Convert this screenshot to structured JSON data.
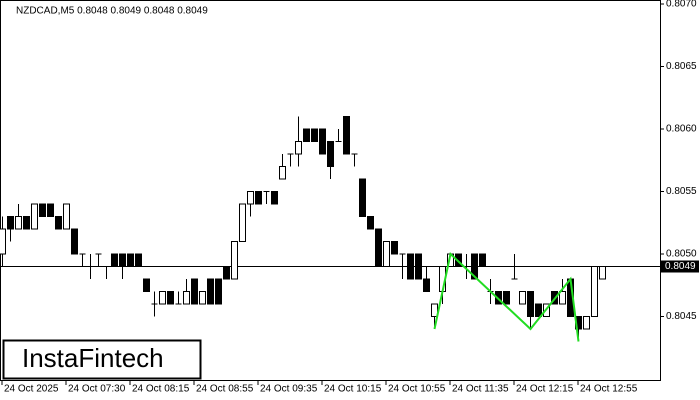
{
  "chart_data": {
    "type": "candlestick",
    "title": "NZDCAD,M5  0.8048 0.8049 0.8048 0.8049",
    "logo": "InstaFintech",
    "categories": [
      "24 Oct 2025",
      null,
      null,
      null,
      null,
      null,
      null,
      null,
      "24 Oct 07:30",
      null,
      null,
      null,
      null,
      null,
      null,
      null,
      "24 Oct 08:15",
      null,
      null,
      null,
      null,
      null,
      null,
      null,
      "24 Oct 08:55",
      null,
      null,
      null,
      null,
      null,
      null,
      null,
      "24 Oct 09:35",
      null,
      null,
      null,
      null,
      null,
      null,
      null,
      "24 Oct 10:15",
      null,
      null,
      null,
      null,
      null,
      null,
      null,
      "24 Oct 10:55",
      null,
      null,
      null,
      null,
      null,
      null,
      null,
      "24 Oct 11:35",
      null,
      null,
      null,
      null,
      null,
      null,
      null,
      "24 Oct 12:15",
      null,
      null,
      null,
      null,
      null,
      null,
      null,
      "24 Oct 12:55",
      null,
      null,
      null
    ],
    "ohlc": [
      [
        0.805,
        0.8053,
        0.8049,
        0.8052
      ],
      [
        0.8053,
        0.8053,
        0.8051,
        0.8052
      ],
      [
        0.8052,
        0.8054,
        0.8052,
        0.8053
      ],
      [
        0.8053,
        0.8053,
        0.8052,
        0.8052
      ],
      [
        0.8052,
        0.8054,
        0.8052,
        0.8054
      ],
      [
        0.8054,
        0.8054,
        0.8053,
        0.8053
      ],
      [
        0.8054,
        0.8054,
        0.8053,
        0.8053
      ],
      [
        0.8053,
        0.8053,
        0.8052,
        0.8052
      ],
      [
        0.8052,
        0.8054,
        0.8052,
        0.8054
      ],
      [
        0.8052,
        0.8052,
        0.805,
        0.805
      ],
      [
        0.805,
        0.805,
        0.8049,
        0.805
      ],
      [
        0.8049,
        0.805,
        0.8048,
        0.8049
      ],
      [
        0.805,
        0.805,
        0.8049,
        0.805
      ],
      [
        0.8049,
        0.8049,
        0.8048,
        0.8049
      ],
      [
        0.805,
        0.805,
        0.8049,
        0.8049
      ],
      [
        0.805,
        0.805,
        0.8048,
        0.8049
      ],
      [
        0.805,
        0.805,
        0.8049,
        0.8049
      ],
      [
        0.805,
        0.805,
        0.8049,
        0.8049
      ],
      [
        0.8048,
        0.8048,
        0.8047,
        0.8047
      ],
      [
        0.8046,
        0.8047,
        0.8045,
        0.8046
      ],
      [
        0.8046,
        0.8047,
        0.8046,
        0.8047
      ],
      [
        0.8047,
        0.8047,
        0.8046,
        0.8046
      ],
      [
        0.8046,
        0.8047,
        0.8046,
        0.8046
      ],
      [
        0.8046,
        0.8048,
        0.8046,
        0.8047
      ],
      [
        0.8048,
        0.8048,
        0.8046,
        0.8046
      ],
      [
        0.8046,
        0.8047,
        0.8046,
        0.8047
      ],
      [
        0.8048,
        0.8048,
        0.8046,
        0.8046
      ],
      [
        0.8048,
        0.8048,
        0.8046,
        0.8046
      ],
      [
        0.8049,
        0.8049,
        0.8048,
        0.8048
      ],
      [
        0.8048,
        0.8051,
        0.8048,
        0.8051
      ],
      [
        0.8051,
        0.8054,
        0.8051,
        0.8054
      ],
      [
        0.8054,
        0.8055,
        0.8053,
        0.8055
      ],
      [
        0.8055,
        0.8055,
        0.8054,
        0.8054
      ],
      [
        0.8055,
        0.8055,
        0.8054,
        0.8055
      ],
      [
        0.8055,
        0.8055,
        0.8054,
        0.8054
      ],
      [
        0.8056,
        0.8058,
        0.8056,
        0.8057
      ],
      [
        0.8058,
        0.8058,
        0.8057,
        0.8058
      ],
      [
        0.8058,
        0.8061,
        0.8057,
        0.8059
      ],
      [
        0.806,
        0.806,
        0.8059,
        0.8059
      ],
      [
        0.806,
        0.806,
        0.8059,
        0.8059
      ],
      [
        0.806,
        0.806,
        0.8058,
        0.8058
      ],
      [
        0.8059,
        0.8059,
        0.8056,
        0.8057
      ],
      [
        0.8059,
        0.806,
        0.8059,
        0.8059
      ],
      [
        0.8061,
        0.8061,
        0.8058,
        0.8058
      ],
      [
        0.8058,
        0.8058,
        0.8057,
        0.8058
      ],
      [
        0.8056,
        0.8056,
        0.8053,
        0.8053
      ],
      [
        0.8053,
        0.8053,
        0.8052,
        0.8052
      ],
      [
        0.8052,
        0.8052,
        0.8049,
        0.8049
      ],
      [
        0.8049,
        0.8051,
        0.8049,
        0.8051
      ],
      [
        0.8051,
        0.8051,
        0.805,
        0.805
      ],
      [
        0.805,
        0.805,
        0.8048,
        0.805
      ],
      [
        0.805,
        0.805,
        0.8048,
        0.8048
      ],
      [
        0.805,
        0.805,
        0.8048,
        0.8048
      ],
      [
        0.8048,
        0.8049,
        0.8047,
        0.8047
      ],
      [
        0.8045,
        0.8046,
        0.8044,
        0.8046
      ],
      [
        0.8047,
        0.8049,
        0.8046,
        0.8049
      ],
      [
        0.8049,
        0.805,
        0.8049,
        0.805
      ],
      [
        0.805,
        0.805,
        0.8049,
        0.8049
      ],
      [
        0.8049,
        0.805,
        0.8048,
        0.8049
      ],
      [
        0.805,
        0.805,
        0.8048,
        0.8048
      ],
      [
        0.805,
        0.805,
        0.8049,
        0.8049
      ],
      [
        0.8047,
        0.8048,
        0.8046,
        0.8047
      ],
      [
        0.8047,
        0.8047,
        0.8046,
        0.8046
      ],
      [
        0.8047,
        0.8047,
        0.8046,
        0.8046
      ],
      [
        0.8048,
        0.805,
        0.8048,
        0.8048
      ],
      [
        0.8046,
        0.8047,
        0.8046,
        0.8047
      ],
      [
        0.8047,
        0.8047,
        0.8044,
        0.8045
      ],
      [
        0.8046,
        0.8046,
        0.8045,
        0.8045
      ],
      [
        0.8045,
        0.8046,
        0.8045,
        0.8046
      ],
      [
        0.8047,
        0.8047,
        0.8046,
        0.8046
      ],
      [
        0.8046,
        0.8048,
        0.8046,
        0.8047
      ],
      [
        0.8048,
        0.8048,
        0.8045,
        0.8045
      ],
      [
        0.8045,
        0.8045,
        0.8043,
        0.8044
      ],
      [
        0.8044,
        0.8045,
        0.8044,
        0.8045
      ],
      [
        0.8045,
        0.8049,
        0.8045,
        0.8049
      ],
      [
        0.8048,
        0.8049,
        0.8048,
        0.8049
      ]
    ],
    "ylim": [
      0.804,
      0.807
    ],
    "yticks": [
      0.8045,
      {
        "value": 0.805,
        "label": "0.8050"
      },
      0.8055,
      {
        "value": 0.806,
        "label": "0.8060"
      },
      0.8065,
      {
        "value": 0.807,
        "label": "0.8070"
      }
    ],
    "price": 0.8049,
    "pattern": {
      "color": "#22dd22",
      "x": [
        54,
        56,
        66,
        71,
        72
      ],
      "y": [
        0.8044,
        0.805,
        0.8044,
        0.8048,
        0.8043
      ]
    }
  }
}
